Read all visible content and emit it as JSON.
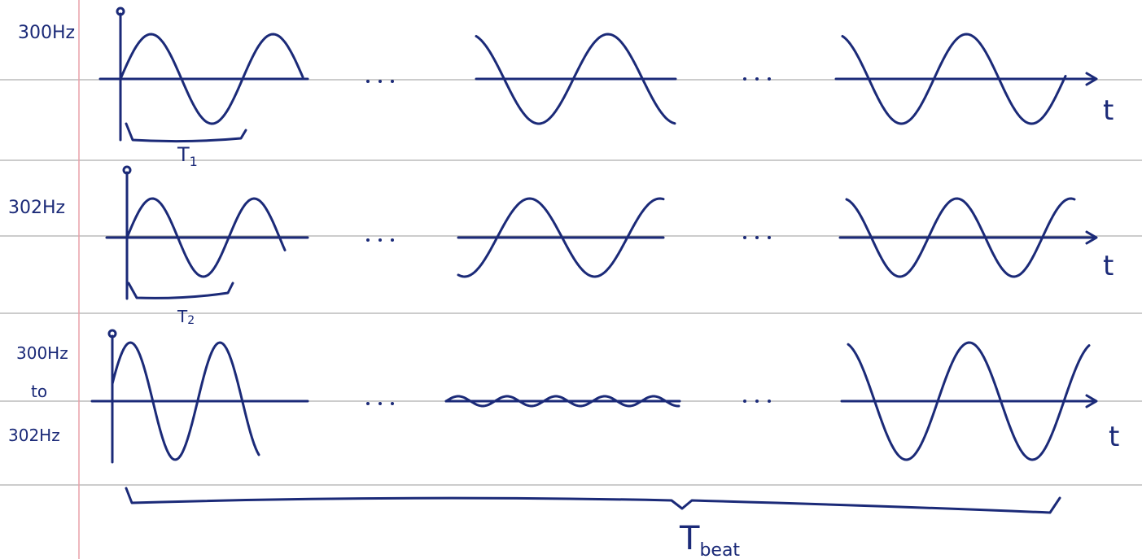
{
  "rows": [
    {
      "label": [
        "300Hz"
      ],
      "period_label": {
        "main": "T",
        "sub": "1"
      },
      "axis_label": "t"
    },
    {
      "label": [
        "302Hz"
      ],
      "period_label": {
        "main": "T",
        "sub": "2"
      },
      "axis_label": "t"
    },
    {
      "label": [
        "300Hz",
        "to",
        "302Hz"
      ],
      "axis_label": "t"
    }
  ],
  "beat_label": {
    "main": "T",
    "sub": "beat"
  }
}
